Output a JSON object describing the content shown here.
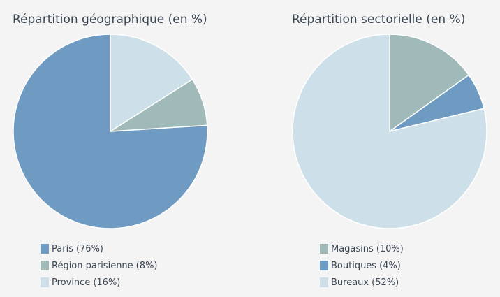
{
  "chart_data": [
    {
      "type": "pie",
      "title": "Répartition géographique (en %)",
      "categories": [
        "Paris",
        "Région parisienne",
        "Province"
      ],
      "values": [
        76,
        8,
        16
      ],
      "value_labels": [
        "(76%)",
        "(8%)",
        "(16%)"
      ],
      "colors": [
        "#6f9bc3",
        "#9fbab9",
        "#cddfe8"
      ],
      "direction": "counterclockwise"
    },
    {
      "type": "pie",
      "title": "Répartition sectorielle (en %)",
      "categories": [
        "Magasins",
        "Boutiques",
        "Bureaux"
      ],
      "values": [
        10,
        4,
        52
      ],
      "value_labels": [
        "(10%)",
        "(4%)",
        "(52%)"
      ],
      "colors": [
        "#9fbab9",
        "#6f9bc3",
        "#cddfe8"
      ],
      "direction": "clockwise"
    }
  ]
}
